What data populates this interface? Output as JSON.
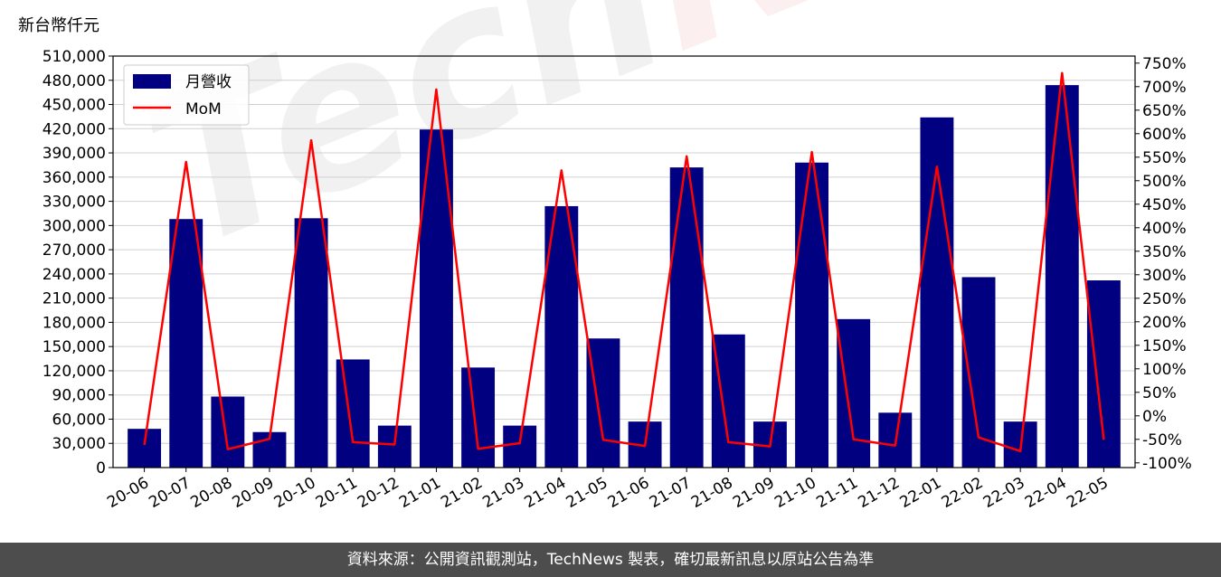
{
  "unit_label": "新台幣仟元",
  "footer_text": "資料來源：公開資訊觀測站，TechNews 製表，確切最新訊息以原站公告為準",
  "watermark": {
    "part1": "Tech",
    "part2": "News"
  },
  "colors": {
    "bar": "#000080",
    "line": "#ff0000",
    "grid": "#d0d0d0",
    "footer_bg": "#4d4d4d"
  },
  "chart_data": {
    "type": "bar",
    "categories": [
      "20-06",
      "20-07",
      "20-08",
      "20-09",
      "20-10",
      "20-11",
      "20-12",
      "21-01",
      "21-02",
      "21-03",
      "21-04",
      "21-05",
      "21-06",
      "21-07",
      "21-08",
      "21-09",
      "21-10",
      "21-11",
      "21-12",
      "22-01",
      "22-02",
      "22-03",
      "22-04",
      "22-05"
    ],
    "series": [
      {
        "name": "月營收",
        "type": "bar",
        "axis": "left",
        "values": [
          48000,
          308000,
          88000,
          44000,
          309000,
          134000,
          52000,
          419000,
          124000,
          52000,
          324000,
          160000,
          57000,
          372000,
          165000,
          57000,
          378000,
          184000,
          68000,
          434000,
          236000,
          57000,
          474000,
          232000
        ]
      },
      {
        "name": "MoM",
        "type": "line",
        "axis": "right",
        "values": [
          -62,
          540,
          -71,
          -49,
          586,
          -56,
          -61,
          694,
          -70,
          -58,
          522,
          -51,
          -64,
          552,
          -56,
          -65,
          561,
          -50,
          -63,
          530,
          -46,
          -75,
          729,
          -51
        ]
      }
    ],
    "left_axis": {
      "ylim": [
        0,
        510000
      ],
      "ticks": [
        0,
        30000,
        60000,
        90000,
        120000,
        150000,
        180000,
        210000,
        240000,
        270000,
        300000,
        330000,
        360000,
        390000,
        420000,
        450000,
        480000,
        510000
      ],
      "tick_labels": [
        "0",
        "30,000",
        "60,000",
        "90,000",
        "120,000",
        "150,000",
        "180,000",
        "210,000",
        "240,000",
        "270,000",
        "300,000",
        "330,000",
        "360,000",
        "390,000",
        "420,000",
        "450,000",
        "480,000",
        "510,000"
      ]
    },
    "right_axis": {
      "ylim": [
        -110,
        765
      ],
      "ticks": [
        -100,
        -50,
        0,
        50,
        100,
        150,
        200,
        250,
        300,
        350,
        400,
        450,
        500,
        550,
        600,
        650,
        700,
        750
      ],
      "tick_labels": [
        "-100%",
        "-50%",
        "0%",
        "50%",
        "100%",
        "150%",
        "200%",
        "250%",
        "300%",
        "350%",
        "400%",
        "450%",
        "500%",
        "550%",
        "600%",
        "650%",
        "700%",
        "750%"
      ]
    },
    "grid": true,
    "legend_position": "top-left"
  }
}
